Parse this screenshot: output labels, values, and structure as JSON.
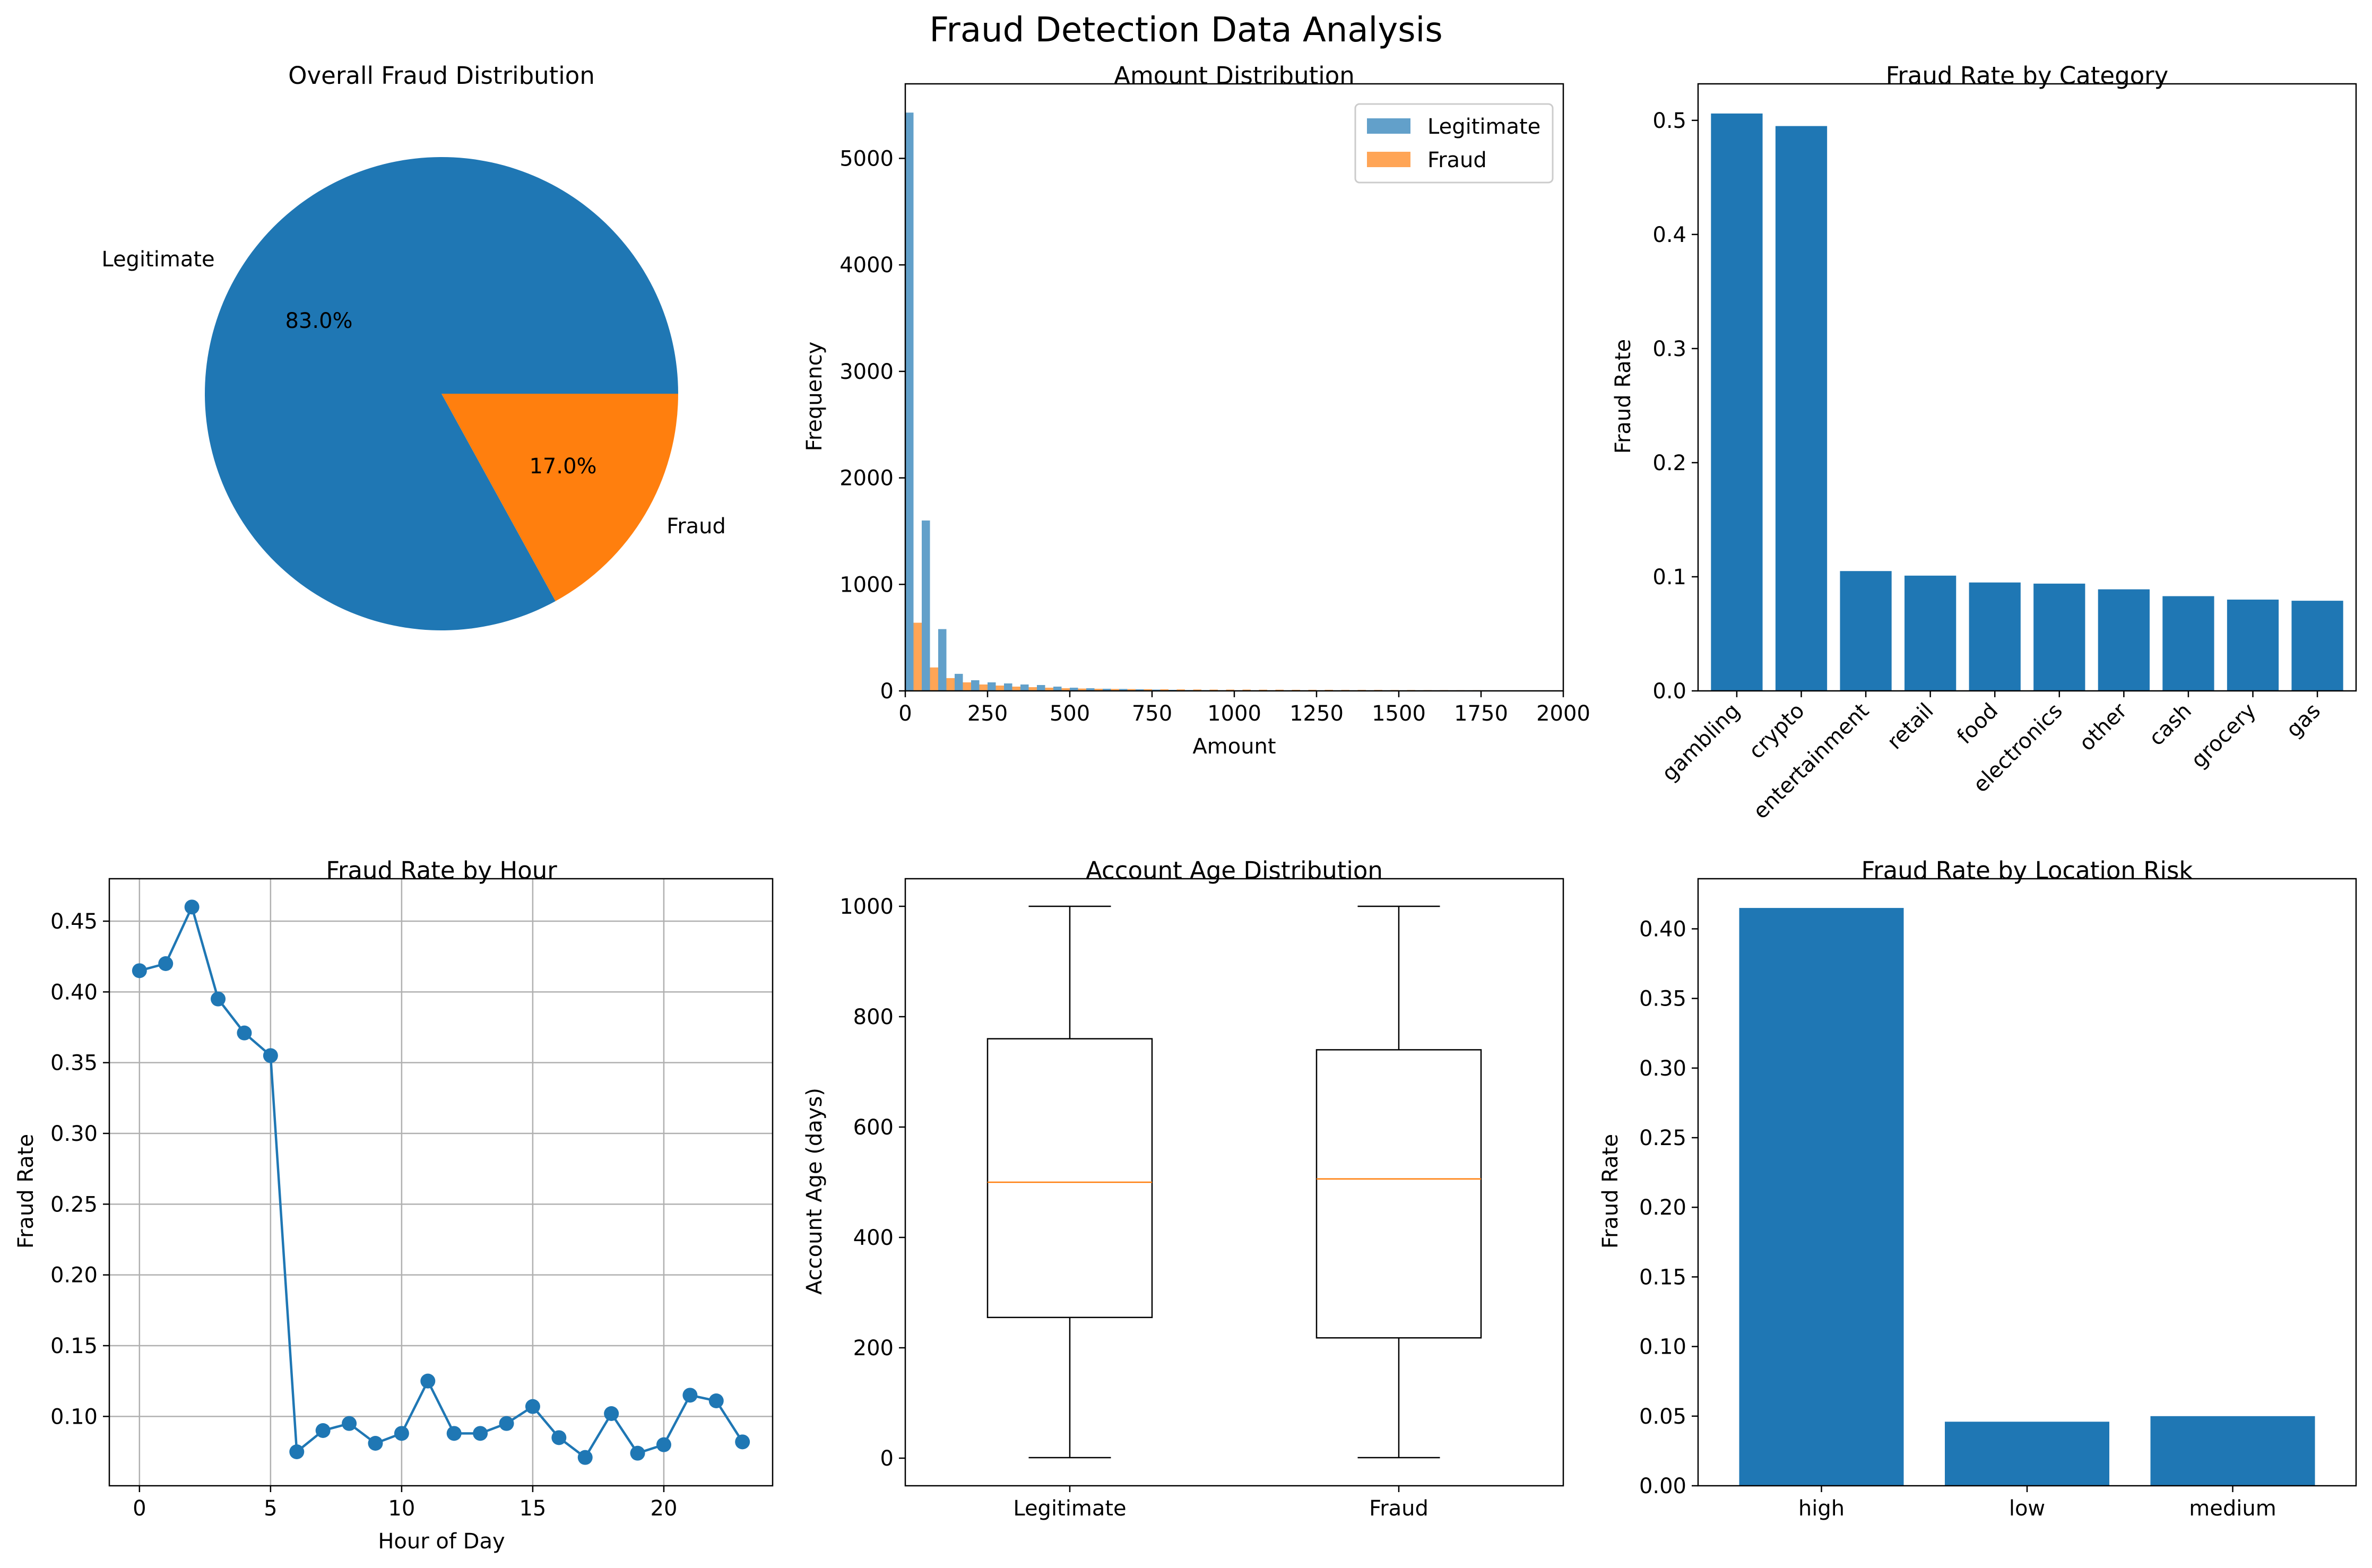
{
  "figure_title": "Fraud Detection Data Analysis",
  "colors": {
    "blue": "#1f77b4",
    "orange": "#ff7f0e",
    "grid": "#b0b0b0",
    "axis": "#000000"
  },
  "chart_data": [
    {
      "id": "pie",
      "type": "pie",
      "title": "Overall Fraud Distribution",
      "slices": [
        {
          "label": "Legitimate",
          "value": 83.0,
          "pct_label": "83.0%",
          "color": "#1f77b4"
        },
        {
          "label": "Fraud",
          "value": 17.0,
          "pct_label": "17.0%",
          "color": "#ff7f0e"
        }
      ]
    },
    {
      "id": "hist",
      "type": "bar",
      "title": "Amount Distribution",
      "xlabel": "Amount",
      "ylabel": "Frequency",
      "xlim": [
        0,
        2000
      ],
      "ylim": [
        0,
        5700
      ],
      "xticks": [
        0,
        250,
        500,
        750,
        1000,
        1250,
        1500,
        1750,
        2000
      ],
      "yticks": [
        0,
        1000,
        2000,
        3000,
        4000,
        5000
      ],
      "bin_width": 50,
      "legend_position": "upper-right",
      "series": [
        {
          "name": "Legitimate",
          "color": "#1f77b4",
          "values": [
            5430,
            1600,
            580,
            160,
            100,
            80,
            70,
            60,
            55,
            40,
            30,
            25,
            20,
            18,
            15,
            12,
            10,
            8,
            7,
            6,
            5,
            4,
            4,
            3,
            3,
            2,
            2,
            2,
            1,
            1,
            1,
            1,
            1,
            1,
            1,
            1,
            0,
            0,
            0,
            0
          ]
        },
        {
          "name": "Fraud",
          "color": "#ff7f0e",
          "values": [
            640,
            220,
            120,
            80,
            60,
            50,
            40,
            35,
            30,
            25,
            22,
            20,
            18,
            17,
            16,
            15,
            14,
            13,
            12,
            12,
            12,
            11,
            11,
            10,
            10,
            10,
            9,
            9,
            9,
            8,
            8,
            7,
            7,
            6,
            6,
            5,
            5,
            4,
            4,
            3
          ]
        }
      ]
    },
    {
      "id": "cat",
      "type": "bar",
      "title": "Fraud Rate by Category",
      "xlabel": "",
      "ylabel": "Fraud Rate",
      "ylim": [
        0,
        0.532
      ],
      "yticks": [
        0.0,
        0.1,
        0.2,
        0.3,
        0.4,
        0.5
      ],
      "categories": [
        "gambling",
        "crypto",
        "entertainment",
        "retail",
        "food",
        "electronics",
        "other",
        "cash",
        "grocery",
        "gas"
      ],
      "values": [
        0.506,
        0.495,
        0.105,
        0.101,
        0.095,
        0.094,
        0.089,
        0.083,
        0.08,
        0.079
      ],
      "color": "#1f77b4"
    },
    {
      "id": "hour",
      "type": "line",
      "title": "Fraud Rate by Hour",
      "xlabel": "Hour of Day",
      "ylabel": "Fraud Rate",
      "xlim": [
        -1.15,
        24.15
      ],
      "ylim": [
        0.051,
        0.48
      ],
      "xticks": [
        0,
        5,
        10,
        15,
        20
      ],
      "yticks": [
        0.1,
        0.15,
        0.2,
        0.25,
        0.3,
        0.35,
        0.4,
        0.45
      ],
      "grid": true,
      "x": [
        0,
        1,
        2,
        3,
        4,
        5,
        6,
        7,
        8,
        9,
        10,
        11,
        12,
        13,
        14,
        15,
        16,
        17,
        18,
        19,
        20,
        21,
        22,
        23
      ],
      "values": [
        0.415,
        0.42,
        0.46,
        0.395,
        0.371,
        0.355,
        0.075,
        0.09,
        0.095,
        0.081,
        0.088,
        0.125,
        0.088,
        0.088,
        0.095,
        0.107,
        0.085,
        0.071,
        0.102,
        0.074,
        0.08,
        0.115,
        0.111,
        0.082
      ],
      "color": "#1f77b4"
    },
    {
      "id": "box",
      "type": "box",
      "title": "Account Age Distribution",
      "xlabel": "",
      "ylabel": "Account Age (days)",
      "ylim": [
        -50,
        1050
      ],
      "yticks": [
        0,
        200,
        400,
        600,
        800,
        1000
      ],
      "categories": [
        "Legitimate",
        "Fraud"
      ],
      "boxes": [
        {
          "min": 1,
          "q1": 255,
          "median": 500,
          "q3": 760,
          "max": 1000
        },
        {
          "min": 1,
          "q1": 218,
          "median": 506,
          "q3": 740,
          "max": 1000
        }
      ],
      "median_color": "#ff7f0e"
    },
    {
      "id": "loc",
      "type": "bar",
      "title": "Fraud Rate by Location Risk",
      "xlabel": "",
      "ylabel": "Fraud Rate",
      "ylim": [
        0,
        0.436
      ],
      "yticks": [
        0.0,
        0.05,
        0.1,
        0.15,
        0.2,
        0.25,
        0.3,
        0.35,
        0.4
      ],
      "categories": [
        "high",
        "low",
        "medium"
      ],
      "values": [
        0.415,
        0.046,
        0.05
      ],
      "color": "#1f77b4"
    }
  ]
}
